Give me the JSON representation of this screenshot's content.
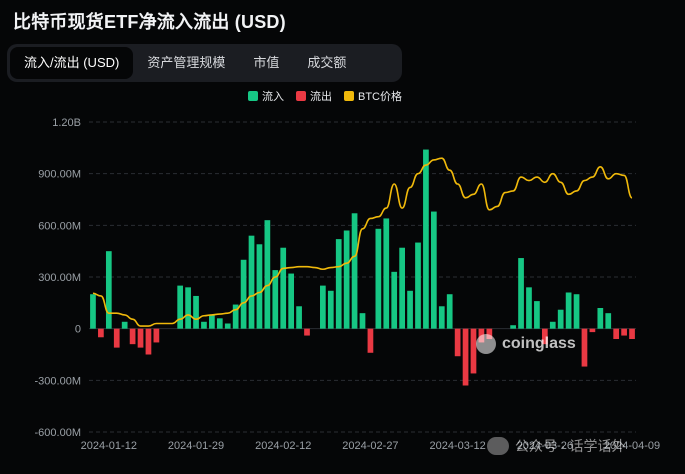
{
  "page": {
    "title": "比特币现货ETF净流入流出 (USD)",
    "tabs": [
      {
        "label": "流入/流出 (USD)",
        "active": true
      },
      {
        "label": "资产管理规模",
        "active": false
      },
      {
        "label": "市值",
        "active": false
      },
      {
        "label": "成交额",
        "active": false
      }
    ],
    "legend": [
      {
        "label": "流入",
        "color": "#16c784"
      },
      {
        "label": "流出",
        "color": "#ea3943"
      },
      {
        "label": "BTC价格",
        "color": "#f0b90b"
      }
    ],
    "watermark": "coinglass",
    "wechat": "公众号 · 话学话外"
  },
  "chart_data": {
    "type": "bar",
    "title": "比特币现货ETF净流入流出 (USD)",
    "ylim": [
      -600000000,
      1200000000
    ],
    "y_ticks": [
      {
        "value": 1200000000,
        "label": "1.20B"
      },
      {
        "value": 900000000,
        "label": "900.00M"
      },
      {
        "value": 600000000,
        "label": "600.00M"
      },
      {
        "value": 300000000,
        "label": "300.00M"
      },
      {
        "value": 0,
        "label": "0"
      },
      {
        "value": -300000000,
        "label": "-300.00M"
      },
      {
        "value": -600000000,
        "label": "-600.00M"
      }
    ],
    "x_ticks": [
      "2024-01-12",
      "2024-01-29",
      "2024-02-12",
      "2024-02-27",
      "2024-03-12",
      "2024-03-26",
      "2024-04-09"
    ],
    "x_tick_index": [
      2,
      13,
      24,
      35,
      46,
      57,
      68
    ],
    "colors": {
      "inflow": "#16c784",
      "outflow": "#ea3943",
      "btc": "#f0b90b",
      "grid": "#2a2d33",
      "axis_text": "#9aa0a6"
    },
    "series": [
      {
        "name": "流入",
        "values": [
          200,
          0,
          450,
          0,
          40,
          0,
          0,
          0,
          0,
          0,
          0,
          250,
          240,
          190,
          40,
          80,
          60,
          30,
          140,
          400,
          540,
          490,
          630,
          340,
          470,
          320,
          130,
          0,
          0,
          250,
          220,
          520,
          570,
          670,
          90,
          0,
          580,
          640,
          330,
          470,
          220,
          500,
          1040,
          680,
          130,
          200,
          0,
          0,
          0,
          0,
          0,
          0,
          0,
          20,
          410,
          240,
          160,
          0,
          40,
          110,
          210,
          200,
          0,
          0,
          120,
          90,
          0,
          0,
          0
        ]
      },
      {
        "name": "流出",
        "values": [
          0,
          -50,
          0,
          -110,
          0,
          -90,
          -110,
          -150,
          -80,
          0,
          0,
          0,
          0,
          0,
          0,
          0,
          0,
          0,
          0,
          0,
          0,
          0,
          0,
          0,
          0,
          0,
          0,
          -40,
          0,
          0,
          0,
          0,
          0,
          0,
          0,
          -140,
          0,
          0,
          0,
          0,
          0,
          0,
          0,
          0,
          0,
          0,
          -160,
          -330,
          -260,
          -80,
          -60,
          0,
          0,
          0,
          0,
          0,
          0,
          -90,
          0,
          0,
          0,
          0,
          -220,
          -20,
          0,
          0,
          -60,
          -40,
          -60
        ]
      },
      {
        "name": "BTC价格",
        "values": [
          205,
          190,
          90,
          90,
          80,
          55,
          15,
          15,
          30,
          30,
          30,
          55,
          80,
          55,
          75,
          80,
          85,
          90,
          110,
          150,
          190,
          210,
          250,
          300,
          350,
          355,
          360,
          360,
          355,
          345,
          355,
          360,
          380,
          420,
          580,
          640,
          650,
          700,
          840,
          700,
          820,
          900,
          950,
          980,
          990,
          920,
          840,
          760,
          780,
          840,
          690,
          710,
          790,
          800,
          880,
          860,
          880,
          850,
          900,
          850,
          780,
          800,
          860,
          880,
          940,
          870,
          900,
          890,
          760
        ]
      }
    ]
  }
}
